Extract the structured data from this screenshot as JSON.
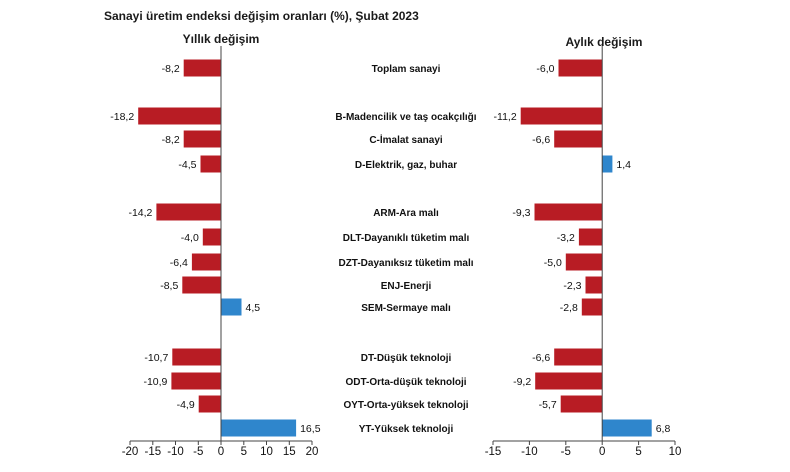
{
  "title": "Sanayi üretim endeksi değişim oranları (%), Şubat 2023",
  "colors": {
    "negative": "#b81c24",
    "positive": "#2f86cc"
  },
  "chart_data": [
    {
      "type": "bar",
      "orientation": "horizontal",
      "title": "Yıllık değişim",
      "xlim": [
        -20,
        20
      ],
      "ticks": [
        -20,
        -15,
        -10,
        -5,
        0,
        5,
        10,
        15,
        20
      ],
      "tick_labels": [
        "-20",
        "-15",
        "-10",
        "-5",
        "0",
        "5",
        "10",
        "15",
        "20"
      ],
      "categories": [
        "Toplam sanayi",
        "B-Madencilik ve taş ocakçılığı",
        "C-İmalat sanayi",
        "D-Elektrik, gaz, buhar",
        "ARM-Ara malı",
        "DLT-Dayanıklı tüketim malı",
        "DZT-Dayanıksız tüketim malı",
        "ENJ-Enerji",
        "SEM-Sermaye malı",
        "DT-Düşük teknoloji",
        "ODT-Orta-düşük teknoloji",
        "OYT-Orta-yüksek teknoloji",
        "YT-Yüksek teknoloji"
      ],
      "values": [
        -8.2,
        -18.2,
        -8.2,
        -4.5,
        -14.2,
        -4.0,
        -6.4,
        -8.5,
        4.5,
        -10.7,
        -10.9,
        -4.9,
        16.5
      ],
      "value_labels": [
        "-8,2",
        "-18,2",
        "-8,2",
        "-4,5",
        "-14,2",
        "-4,0",
        "-6,4",
        "-8,5",
        "4,5",
        "-10,7",
        "-10,9",
        "-4,9",
        "16,5"
      ]
    },
    {
      "type": "bar",
      "orientation": "horizontal",
      "title": "Aylık değişim",
      "xlim": [
        -15,
        10
      ],
      "ticks": [
        -15,
        -10,
        -5,
        0,
        5,
        10
      ],
      "tick_labels": [
        "-15",
        "-10",
        "-5",
        "0",
        "5",
        "10"
      ],
      "categories": [
        "Toplam sanayi",
        "B-Madencilik ve taş ocakçılığı",
        "C-İmalat sanayi",
        "D-Elektrik, gaz, buhar",
        "ARM-Ara malı",
        "DLT-Dayanıklı tüketim malı",
        "DZT-Dayanıksız tüketim malı",
        "ENJ-Enerji",
        "SEM-Sermaye malı",
        "DT-Düşük teknoloji",
        "ODT-Orta-düşük teknoloji",
        "OYT-Orta-yüksek teknoloji",
        "YT-Yüksek teknoloji"
      ],
      "values": [
        -6.0,
        -11.2,
        -6.6,
        1.4,
        -9.3,
        -3.2,
        -5.0,
        -2.3,
        -2.8,
        -6.6,
        -9.2,
        -5.7,
        6.8
      ],
      "value_labels": [
        "-6,0",
        "-11,2",
        "-6,6",
        "1,4",
        "-9,3",
        "-3,2",
        "-5,0",
        "-2,3",
        "-2,8",
        "-6,6",
        "-9,2",
        "-5,7",
        "6,8"
      ]
    }
  ]
}
